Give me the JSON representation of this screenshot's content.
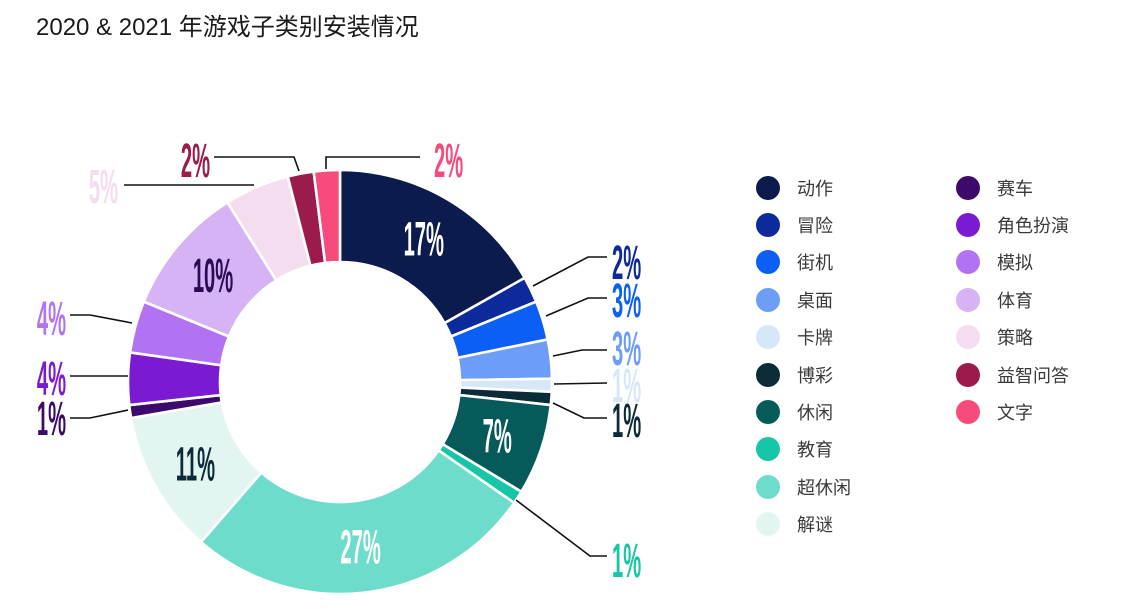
{
  "chart_data": {
    "type": "pie",
    "donut": true,
    "title": "2020 & 2021 年游戏子类别安装情况",
    "unit": "%",
    "legend_position": "right",
    "categories": [
      "动作",
      "冒险",
      "街机",
      "桌面",
      "卡牌",
      "博彩",
      "休闲",
      "教育",
      "超休闲",
      "解谜",
      "赛车",
      "角色扮演",
      "模拟",
      "体育",
      "策略",
      "益智问答",
      "文字"
    ],
    "values": [
      17,
      2,
      3,
      3,
      1,
      1,
      7,
      1,
      27,
      11,
      1,
      4,
      4,
      10,
      5,
      2,
      2
    ],
    "colors": [
      "#0c1b4d",
      "#0c2a9b",
      "#0b5ff5",
      "#6d9df7",
      "#d6e8f8",
      "#0c2b38",
      "#075a5a",
      "#16c6a6",
      "#6edccb",
      "#e3f5f1",
      "#3b0a6b",
      "#7a1bd2",
      "#b273f2",
      "#d5b3f5",
      "#f5ddf0",
      "#9b1c4c",
      "#f64b7c"
    ]
  }
}
